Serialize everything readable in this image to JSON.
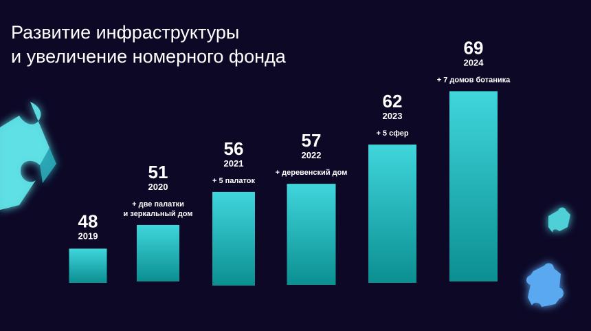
{
  "title": {
    "line1": "Развитие инфраструктуры",
    "line2": "и увеличение номерного фонда"
  },
  "colors": {
    "background": "#0c0826",
    "bar_top": "#3fd6dc",
    "bar_bottom": "#0b8f91",
    "text": "#ffffff",
    "puzzle_teal": "#5fe0e6",
    "puzzle_blue": "#5aa8f0"
  },
  "icons": [
    "puzzle-piece-icon",
    "puzzle-piece-icon",
    "puzzle-piece-icon"
  ],
  "chart_data": {
    "type": "bar",
    "categories": [
      "2019",
      "2020",
      "2021",
      "2022",
      "2023",
      "2024"
    ],
    "values": [
      48,
      51,
      56,
      57,
      62,
      69
    ],
    "annotations": [
      [],
      [
        "+ две палатки",
        "и зеркальный дом"
      ],
      [
        "+ 5 палаток"
      ],
      [
        "+ деревенский дом"
      ],
      [
        "+ 5 сфер"
      ],
      [
        "+ 7 домов ботаника"
      ]
    ],
    "grid": false,
    "legend": "none",
    "title": "Развитие инфраструктуры и увеличение номерного фонда"
  }
}
